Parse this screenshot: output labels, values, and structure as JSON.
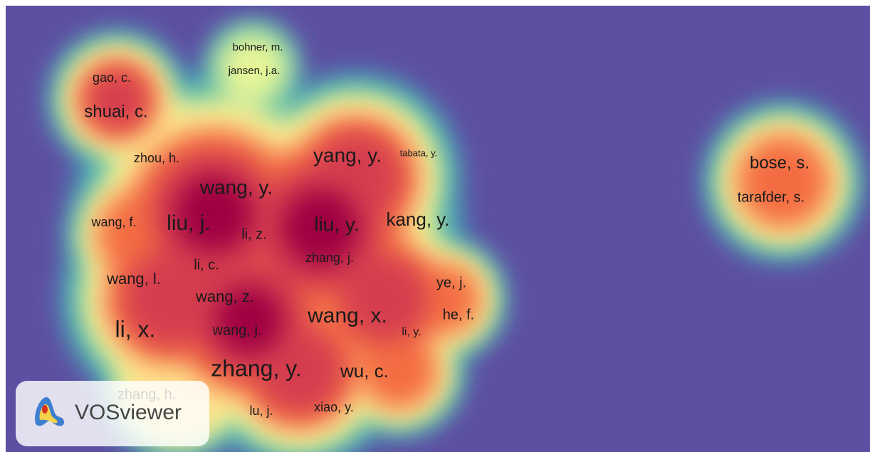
{
  "labels": [
    "bohner, m.",
    "jansen, j.a.",
    "gao, c.",
    "shuai, c.",
    "zhou, h.",
    "yang, y.",
    "tabata, y.",
    "wang, y.",
    "bose, s.",
    "tarafder, s.",
    "wang, f.",
    "liu, j.",
    "li, z.",
    "liu, y.",
    "kang, y.",
    "zhang, j.",
    "li, c.",
    "wang, l.",
    "ye, j.",
    "wang, z.",
    "wang, x.",
    "he, f.",
    "li, x.",
    "wang, j.",
    "li, y.",
    "zhang, y.",
    "wu, c.",
    "zhang, h.",
    "xiao, y.",
    "lu, j."
  ],
  "logo": {
    "text": "VOSviewer"
  }
}
